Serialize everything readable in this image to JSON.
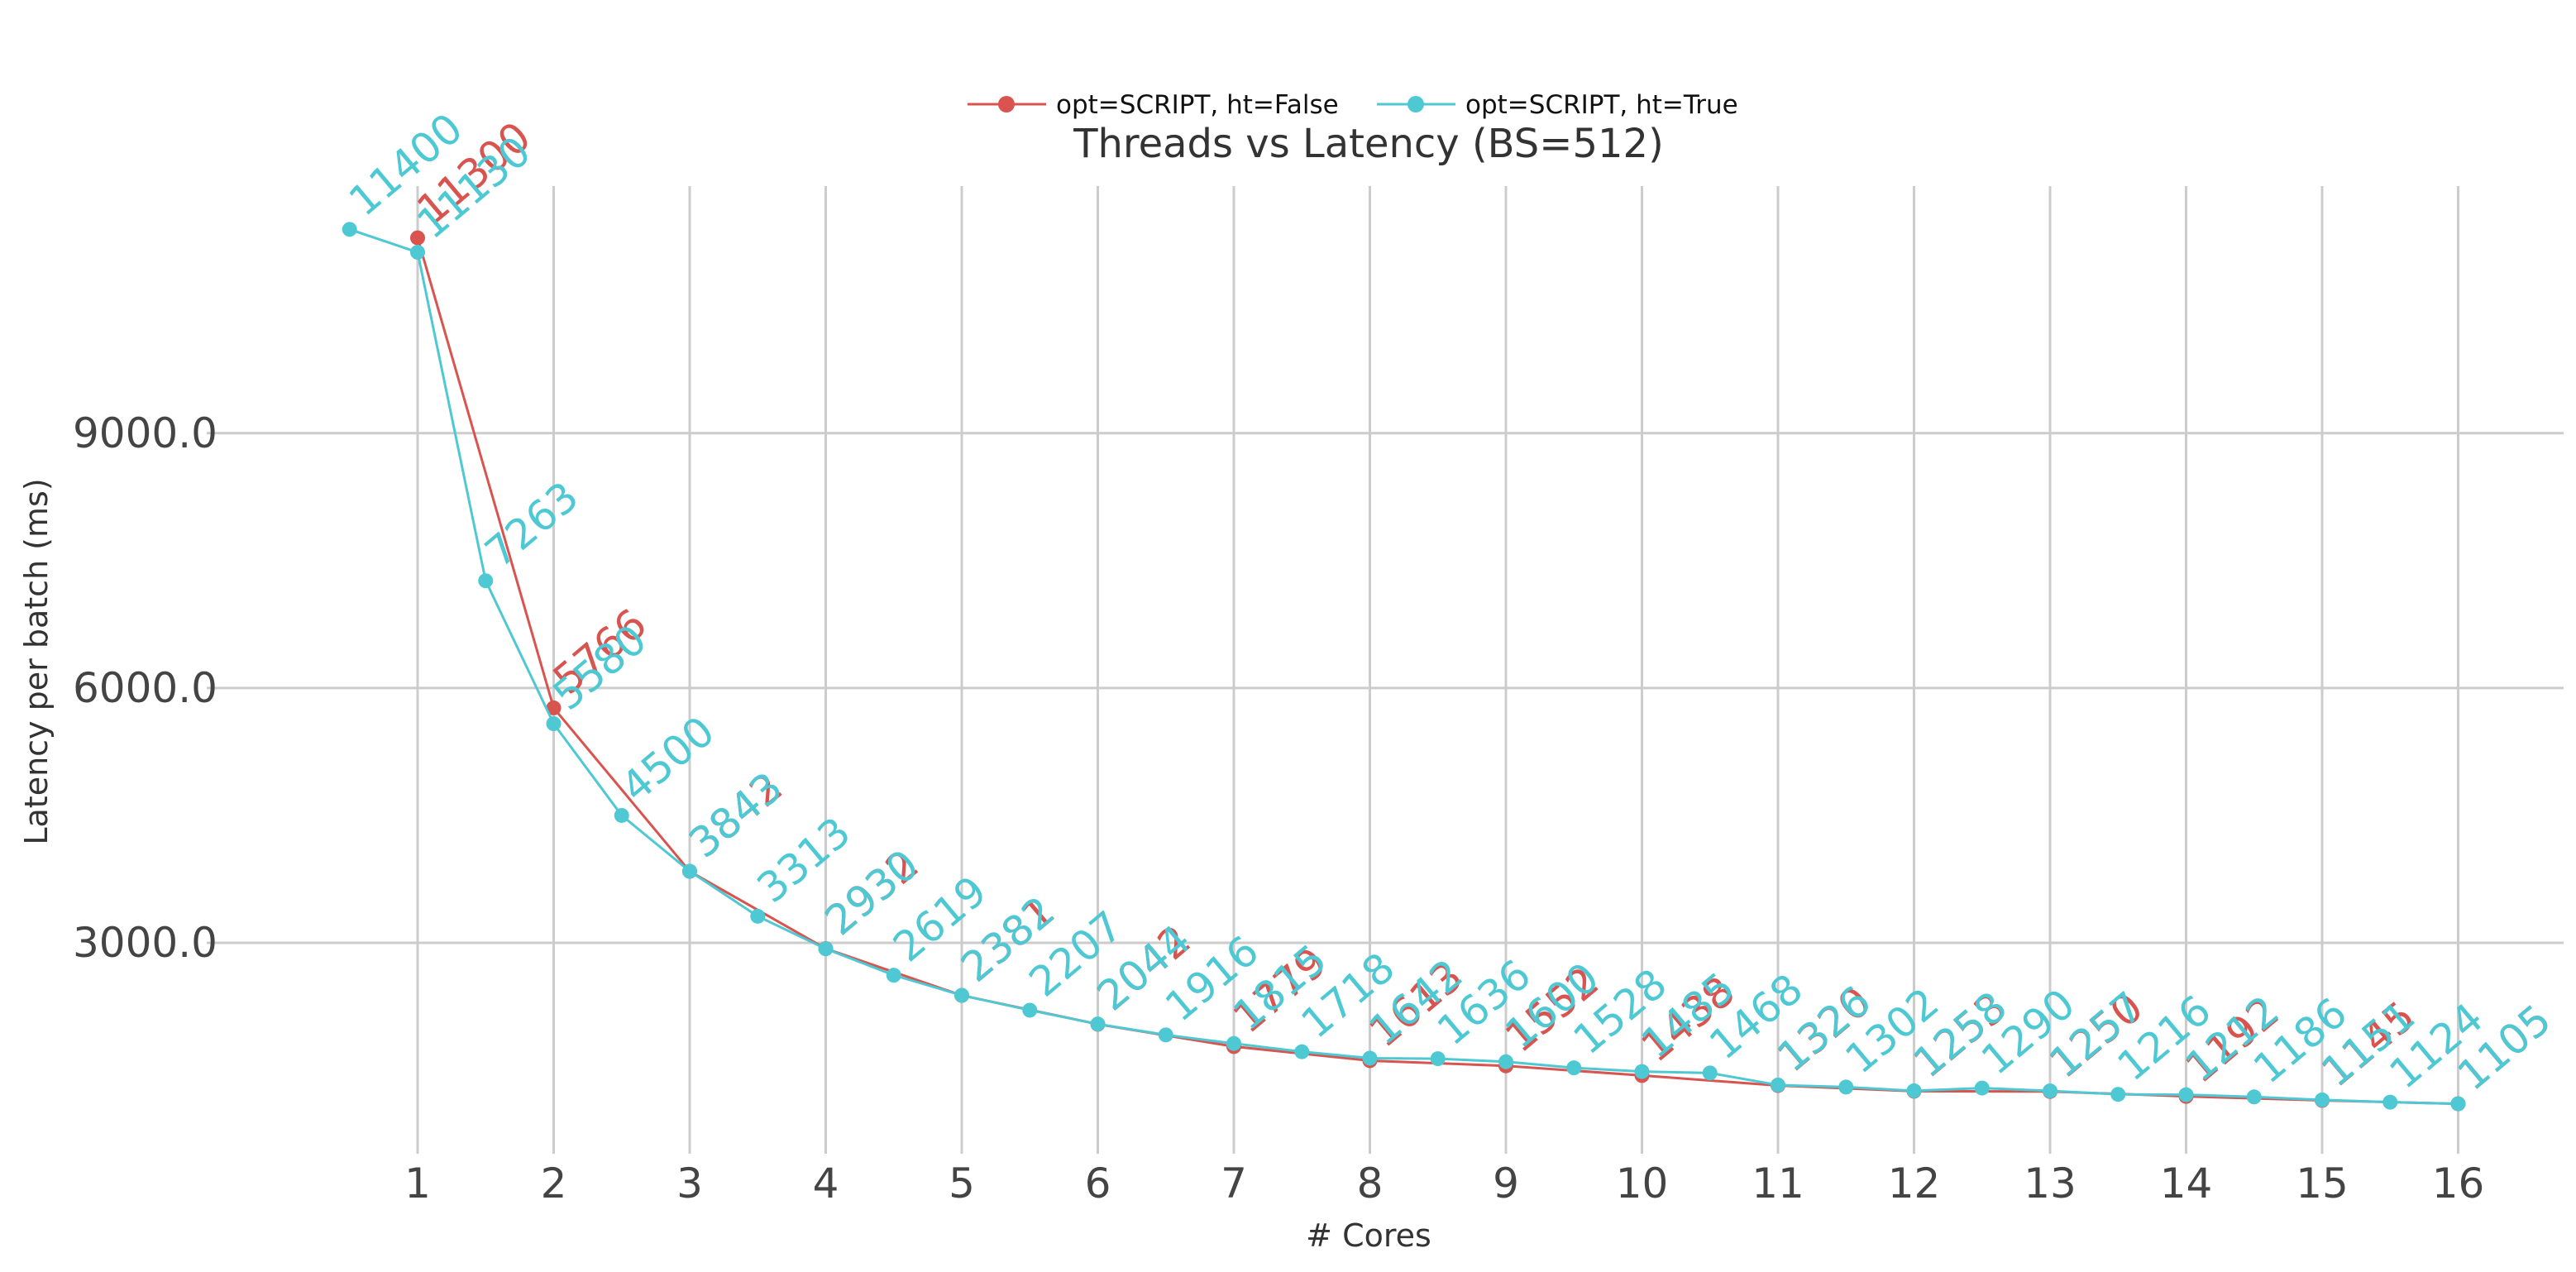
{
  "chart_data": {
    "type": "line",
    "title": "Threads vs Latency (BS=512)",
    "xlabel": "# Cores",
    "ylabel": "Latency per batch (ms)",
    "xticks": [
      1,
      2,
      3,
      4,
      5,
      6,
      7,
      8,
      9,
      10,
      11,
      12,
      13,
      14,
      15,
      16
    ],
    "yticks": [
      "3000.0",
      "6000.0",
      "9000.0"
    ],
    "xlim": [
      0.4,
      16.8
    ],
    "ylim": [
      700,
      11900
    ],
    "grid": true,
    "legend_position": "top-center",
    "series": [
      {
        "name": "opt=SCRIPT, ht=False",
        "color": "#d9534f",
        "points": [
          {
            "x": 1,
            "y": 11300,
            "label": "11300"
          },
          {
            "x": 2,
            "y": 5766,
            "label": "5766"
          },
          {
            "x": 3,
            "y": 3842,
            "label": "3842"
          },
          {
            "x": 4,
            "y": 2932,
            "label": "2932"
          },
          {
            "x": 5,
            "y": 2381,
            "label": "2381"
          },
          {
            "x": 6,
            "y": 2042,
            "label": "2042"
          },
          {
            "x": 7,
            "y": 1779,
            "label": "1779"
          },
          {
            "x": 8,
            "y": 1613,
            "label": "1613"
          },
          {
            "x": 9,
            "y": 1552,
            "label": "1552"
          },
          {
            "x": 10,
            "y": 1438,
            "label": "1438"
          },
          {
            "x": 11,
            "y": 1320,
            "label": "1320"
          },
          {
            "x": 12,
            "y": 1253,
            "label": "1253"
          },
          {
            "x": 13,
            "y": 1250,
            "label": "1250"
          },
          {
            "x": 14,
            "y": 1192,
            "label": "1192"
          },
          {
            "x": 15,
            "y": 1145,
            "label": "1145"
          },
          {
            "x": 16,
            "y": 1105,
            "label": "1105"
          }
        ]
      },
      {
        "name": "opt=SCRIPT, ht=True",
        "color": "#4ec9d4",
        "points": [
          {
            "x": 0.5,
            "y": 11400,
            "label": "11400"
          },
          {
            "x": 1,
            "y": 11130,
            "label": "11130"
          },
          {
            "x": 1.5,
            "y": 7263,
            "label": "7263"
          },
          {
            "x": 2,
            "y": 5580,
            "label": "5580"
          },
          {
            "x": 2.5,
            "y": 4500,
            "label": "4500"
          },
          {
            "x": 3,
            "y": 3843,
            "label": "3843"
          },
          {
            "x": 3.5,
            "y": 3313,
            "label": "3313"
          },
          {
            "x": 4,
            "y": 2930,
            "label": "2930"
          },
          {
            "x": 4.5,
            "y": 2619,
            "label": "2619"
          },
          {
            "x": 5,
            "y": 2382,
            "label": "2382"
          },
          {
            "x": 5.5,
            "y": 2207,
            "label": "2207"
          },
          {
            "x": 6,
            "y": 2044,
            "label": "2044"
          },
          {
            "x": 6.5,
            "y": 1916,
            "label": "1916"
          },
          {
            "x": 7,
            "y": 1815,
            "label": "1815"
          },
          {
            "x": 7.5,
            "y": 1718,
            "label": "1718"
          },
          {
            "x": 8,
            "y": 1642,
            "label": "1642"
          },
          {
            "x": 8.5,
            "y": 1636,
            "label": "1636"
          },
          {
            "x": 9,
            "y": 1600,
            "label": "1600"
          },
          {
            "x": 9.5,
            "y": 1528,
            "label": "1528"
          },
          {
            "x": 10,
            "y": 1485,
            "label": "1485"
          },
          {
            "x": 10.5,
            "y": 1468,
            "label": "1468"
          },
          {
            "x": 11,
            "y": 1326,
            "label": "1326"
          },
          {
            "x": 11.5,
            "y": 1302,
            "label": "1302"
          },
          {
            "x": 12,
            "y": 1258,
            "label": "1258"
          },
          {
            "x": 12.5,
            "y": 1290,
            "label": "1290"
          },
          {
            "x": 13,
            "y": 1257,
            "label": "1257"
          },
          {
            "x": 13.5,
            "y": 1216,
            "label": "1216"
          },
          {
            "x": 14,
            "y": 1212,
            "label": "1212"
          },
          {
            "x": 14.5,
            "y": 1186,
            "label": "1186"
          },
          {
            "x": 15,
            "y": 1151,
            "label": "1151"
          },
          {
            "x": 15.5,
            "y": 1124,
            "label": "1124"
          },
          {
            "x": 16,
            "y": 1105,
            "label": "1105"
          }
        ]
      }
    ]
  }
}
